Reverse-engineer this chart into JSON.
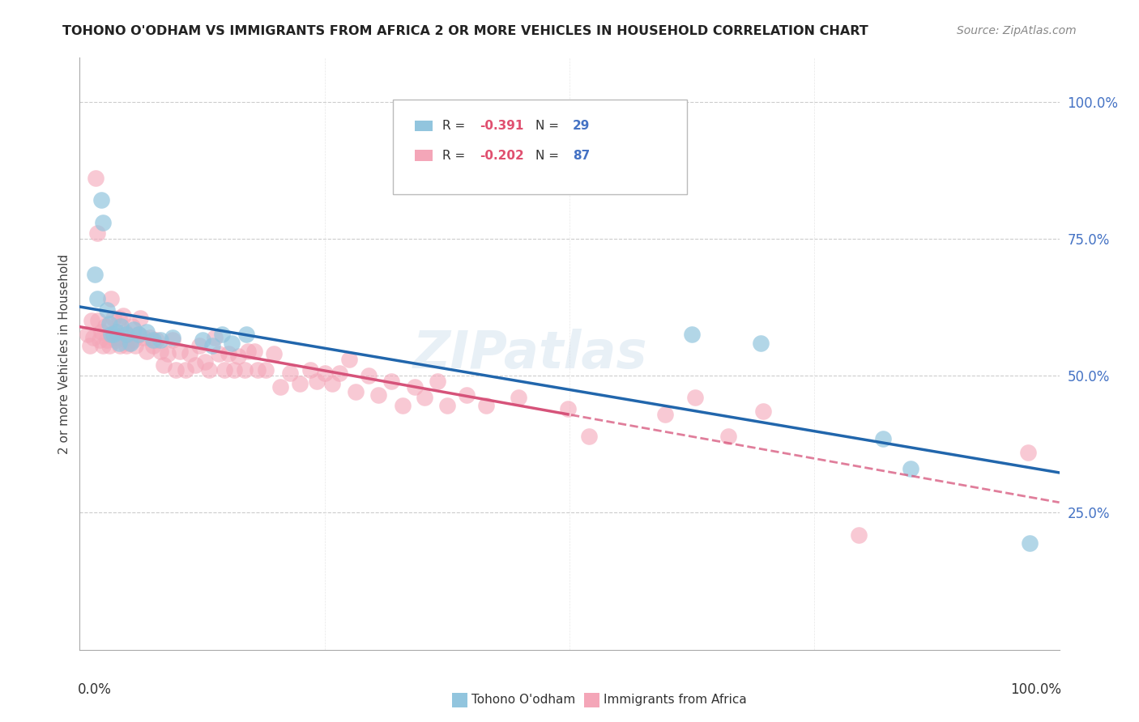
{
  "title": "TOHONO O'ODHAM VS IMMIGRANTS FROM AFRICA 2 OR MORE VEHICLES IN HOUSEHOLD CORRELATION CHART",
  "source": "Source: ZipAtlas.com",
  "ylabel": "2 or more Vehicles in Household",
  "legend_label1": "Tohono O'odham",
  "legend_label2": "Immigrants from Africa",
  "R1": -0.391,
  "N1": 29,
  "R2": -0.202,
  "N2": 87,
  "color_blue": "#92c5de",
  "color_pink": "#f4a6b8",
  "color_blue_line": "#2166ac",
  "color_pink_line": "#d6537a",
  "blue_points_x": [
    0.015,
    0.018,
    0.022,
    0.024,
    0.028,
    0.03,
    0.032,
    0.034,
    0.038,
    0.04,
    0.042,
    0.048,
    0.052,
    0.055,
    0.06,
    0.068,
    0.075,
    0.082,
    0.095,
    0.125,
    0.135,
    0.145,
    0.155,
    0.17,
    0.625,
    0.695,
    0.82,
    0.848,
    0.97
  ],
  "blue_points_y": [
    0.685,
    0.64,
    0.82,
    0.78,
    0.62,
    0.595,
    0.575,
    0.575,
    0.58,
    0.56,
    0.59,
    0.575,
    0.56,
    0.585,
    0.575,
    0.58,
    0.565,
    0.565,
    0.57,
    0.565,
    0.555,
    0.575,
    0.56,
    0.575,
    0.575,
    0.56,
    0.385,
    0.33,
    0.195
  ],
  "pink_points_x": [
    0.008,
    0.01,
    0.012,
    0.014,
    0.016,
    0.018,
    0.019,
    0.02,
    0.022,
    0.024,
    0.026,
    0.028,
    0.03,
    0.032,
    0.034,
    0.036,
    0.037,
    0.038,
    0.04,
    0.041,
    0.044,
    0.046,
    0.048,
    0.05,
    0.053,
    0.055,
    0.057,
    0.06,
    0.062,
    0.065,
    0.068,
    0.072,
    0.075,
    0.078,
    0.082,
    0.086,
    0.09,
    0.095,
    0.098,
    0.102,
    0.108,
    0.112,
    0.118,
    0.122,
    0.128,
    0.132,
    0.138,
    0.142,
    0.148,
    0.152,
    0.158,
    0.162,
    0.168,
    0.172,
    0.178,
    0.182,
    0.19,
    0.198,
    0.205,
    0.215,
    0.225,
    0.235,
    0.242,
    0.25,
    0.258,
    0.265,
    0.275,
    0.282,
    0.295,
    0.305,
    0.318,
    0.33,
    0.342,
    0.352,
    0.365,
    0.375,
    0.395,
    0.415,
    0.448,
    0.498,
    0.52,
    0.598,
    0.628,
    0.662,
    0.698,
    0.795,
    0.968
  ],
  "pink_points_y": [
    0.575,
    0.555,
    0.6,
    0.57,
    0.86,
    0.76,
    0.6,
    0.565,
    0.58,
    0.555,
    0.59,
    0.565,
    0.555,
    0.64,
    0.605,
    0.58,
    0.565,
    0.57,
    0.605,
    0.555,
    0.61,
    0.58,
    0.555,
    0.56,
    0.59,
    0.565,
    0.555,
    0.575,
    0.605,
    0.57,
    0.545,
    0.57,
    0.555,
    0.565,
    0.545,
    0.52,
    0.54,
    0.565,
    0.51,
    0.545,
    0.51,
    0.54,
    0.52,
    0.555,
    0.525,
    0.51,
    0.57,
    0.54,
    0.51,
    0.54,
    0.51,
    0.535,
    0.51,
    0.545,
    0.545,
    0.51,
    0.51,
    0.54,
    0.48,
    0.505,
    0.485,
    0.51,
    0.49,
    0.505,
    0.485,
    0.505,
    0.53,
    0.47,
    0.5,
    0.465,
    0.49,
    0.445,
    0.48,
    0.46,
    0.49,
    0.445,
    0.465,
    0.445,
    0.46,
    0.44,
    0.39,
    0.43,
    0.46,
    0.39,
    0.435,
    0.21,
    0.36
  ]
}
